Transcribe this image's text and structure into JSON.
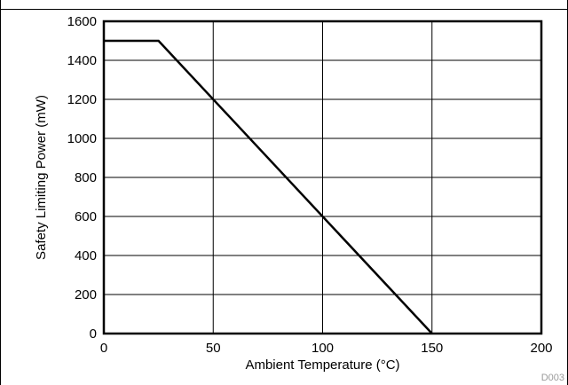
{
  "chart_data": {
    "type": "line",
    "title": "",
    "xlabel": "Ambient Temperature (°C)",
    "ylabel": "Safety Limiting Power (mW)",
    "xlim": [
      0,
      200
    ],
    "ylim": [
      0,
      1600
    ],
    "x_ticks": [
      0,
      50,
      100,
      150,
      200
    ],
    "y_ticks": [
      0,
      200,
      400,
      600,
      800,
      1000,
      1200,
      1400,
      1600
    ],
    "x_grid": [
      50,
      100,
      150
    ],
    "y_grid": [
      200,
      400,
      600,
      800,
      1000,
      1200,
      1400
    ],
    "grid": true,
    "legend": "none",
    "series": [
      {
        "color": "#000000",
        "x": [
          0,
          25,
          150
        ],
        "y": [
          1500,
          1500,
          0
        ]
      }
    ],
    "figure_code": "D003"
  }
}
